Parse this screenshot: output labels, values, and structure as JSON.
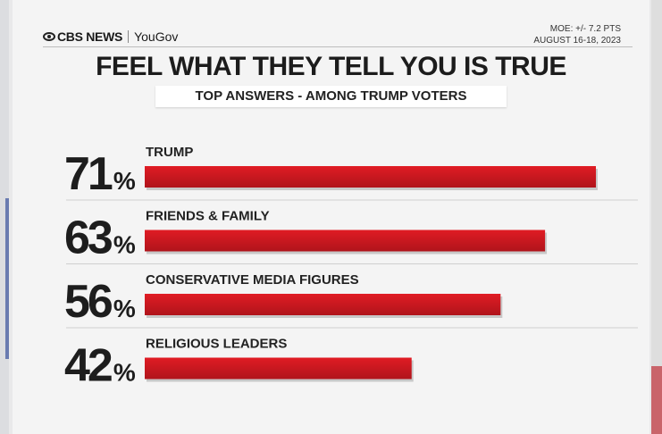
{
  "header": {
    "brand_cbs": "CBS NEWS",
    "brand_yougov": "YouGov",
    "moe": "MOE: +/- 7.2 PTS",
    "dates": "AUGUST 16-18, 2023"
  },
  "title": "FEEL WHAT THEY TELL YOU IS TRUE",
  "subtitle": "TOP ANSWERS - AMONG TRUMP VOTERS",
  "colors": {
    "bar": "#e01c24",
    "bar_dark": "#b0141b"
  },
  "chart_data": {
    "type": "bar",
    "orientation": "horizontal",
    "categories": [
      "TRUMP",
      "FRIENDS & FAMILY",
      "CONSERVATIVE MEDIA FIGURES",
      "RELIGIOUS LEADERS"
    ],
    "values": [
      71,
      63,
      56,
      42
    ],
    "value_labels": [
      "71",
      "63",
      "56",
      "42"
    ],
    "unit": "%",
    "xlim": [
      0,
      71
    ],
    "title": "FEEL WHAT THEY TELL YOU IS TRUE",
    "subtitle": "TOP ANSWERS - AMONG TRUMP VOTERS",
    "grid": false
  }
}
